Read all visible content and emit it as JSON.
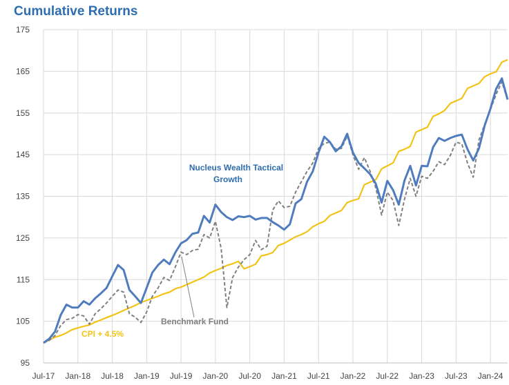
{
  "chart_data": {
    "type": "line",
    "title": "Cumulative Returns",
    "xlabel": "",
    "ylabel": "",
    "ylim": [
      95,
      175
    ],
    "yticks": [
      95,
      105,
      115,
      125,
      135,
      145,
      155,
      165,
      175
    ],
    "x_tick_labels": [
      "Jul-17",
      "Jan-18",
      "Jul-18",
      "Jan-19",
      "Jul-19",
      "Jan-20",
      "Jul-20",
      "Jan-21",
      "Jul-21",
      "Jan-22",
      "Jul-22",
      "Jan-23",
      "Jul-23",
      "Jan-24"
    ],
    "grid": true,
    "colors": {
      "fund": "#4F7CBE",
      "benchmark": "#7F7F7F",
      "cpi": "#F2C314",
      "title": "#2E6DAF"
    },
    "series": [
      {
        "name": "Nucleus Wealth Tactical Growth",
        "style": "solid",
        "values": [
          99.8,
          100.8,
          102.5,
          106.5,
          109,
          108.3,
          108.3,
          109.8,
          109,
          110.5,
          111.7,
          113,
          115.8,
          118.5,
          117.3,
          112.5,
          111,
          109.4,
          113,
          116.7,
          118.5,
          119.8,
          118.7,
          121.5,
          123.7,
          124.5,
          126,
          126.3,
          130.3,
          128.7,
          133,
          131.2,
          130,
          129.3,
          130.2,
          130,
          130.3,
          129.4,
          129.8,
          129.8,
          128.8,
          128,
          127,
          128.3,
          133.3,
          134.3,
          138.5,
          141,
          145.5,
          149.3,
          148,
          145.8,
          147,
          150,
          145.5,
          143,
          141.7,
          140.3,
          138,
          133.5,
          138.7,
          136.5,
          133,
          138.8,
          142.3,
          137.6,
          142.3,
          142.2,
          146.8,
          149,
          148.3,
          149,
          149.5,
          149.8,
          146.3,
          143.6,
          146.5,
          152,
          156,
          160.8,
          163.3,
          158.2
        ]
      },
      {
        "name": "Benchmark Fund",
        "style": "dashed",
        "values": [
          99.8,
          100.4,
          101.6,
          104,
          105.4,
          105.7,
          106.6,
          106.3,
          104.3,
          106.8,
          108,
          109.4,
          111,
          112.5,
          112,
          106.8,
          106,
          104.7,
          107.2,
          111,
          113,
          115.5,
          114.8,
          118,
          121.6,
          121,
          122,
          122.3,
          125.8,
          125,
          129,
          122.5,
          108.3,
          115.5,
          118,
          119.8,
          121,
          124.4,
          122.2,
          123,
          131.7,
          133.9,
          132.3,
          132.6,
          136,
          138.5,
          141,
          143,
          146.5,
          147.7,
          148,
          146.3,
          146.5,
          149.5,
          145,
          141.5,
          144.3,
          141,
          137,
          130.5,
          136,
          134,
          128,
          134.3,
          139.3,
          135,
          139.8,
          139.3,
          141,
          143.3,
          142.6,
          144.8,
          148,
          147.6,
          143,
          139.6,
          148.5,
          152.3,
          155.8,
          159.5,
          162.5,
          158
        ]
      },
      {
        "name": "CPI + 4.5%",
        "style": "solid",
        "values": [
          99.8,
          100.5,
          101.2,
          101.6,
          102.2,
          103,
          103.4,
          103.8,
          104.1,
          104.8,
          105.3,
          105.9,
          106.4,
          107,
          107.6,
          108.2,
          108.8,
          109.5,
          110,
          110.5,
          111,
          111.6,
          112,
          112.8,
          113.2,
          113.8,
          114.4,
          115,
          115.6,
          116.6,
          117.2,
          117.7,
          118.4,
          118.8,
          119.4,
          117.6,
          118.1,
          118.7,
          120.7,
          121,
          121.5,
          123.2,
          123.7,
          124.5,
          125.3,
          125.8,
          126.5,
          127.7,
          128.4,
          129,
          130.4,
          131,
          131.6,
          133.5,
          134,
          134.4,
          137.8,
          138.4,
          139,
          141.6,
          142.3,
          143,
          145.8,
          146.3,
          147,
          150.4,
          151,
          151.6,
          154.2,
          154.8,
          155.6,
          157.3,
          157.9,
          158.5,
          160.9,
          161.5,
          162.1,
          163.7,
          164.4,
          164.9,
          167.2,
          167.8
        ]
      }
    ],
    "annotations": {
      "fund_line1": "Nucleus Wealth Tactical",
      "fund_line2": "Growth",
      "benchmark": "Benchmark Fund",
      "cpi": "CPI + 4.5%"
    }
  }
}
